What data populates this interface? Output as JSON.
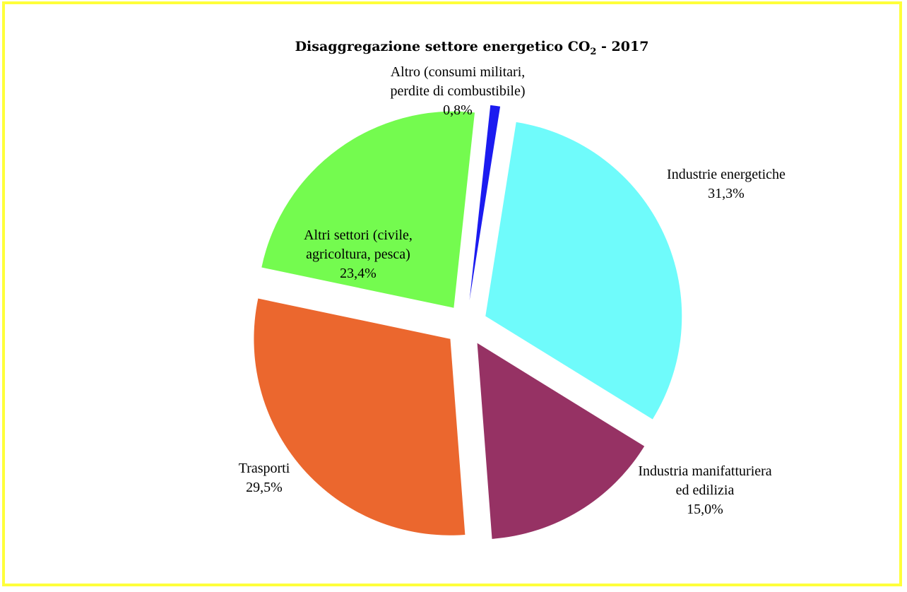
{
  "chart_data": {
    "type": "pie",
    "title_main": "Disaggregazione settore energetico CO",
    "title_sub": "2",
    "title_tail": " - 2017",
    "slices": [
      {
        "key": "industrie-energetiche",
        "lines": [
          "Industrie energetiche"
        ],
        "pct_label": "31,3%",
        "value": 31.3,
        "color": "#6ffbfb"
      },
      {
        "key": "industria-manifatturiera",
        "lines": [
          "Industria manifatturiera",
          "ed edilizia"
        ],
        "pct_label": "15,0%",
        "value": 15.0,
        "color": "#963264"
      },
      {
        "key": "trasporti",
        "lines": [
          "Trasporti"
        ],
        "pct_label": "29,5%",
        "value": 29.5,
        "color": "#eb672e"
      },
      {
        "key": "altri-settori",
        "lines": [
          "Altri settori (civile,",
          "agricoltura, pesca)"
        ],
        "pct_label": "23,4%",
        "value": 23.4,
        "color": "#74fb4f"
      },
      {
        "key": "altro",
        "lines": [
          "Altro (consumi militari,",
          "perdite di combustibile)"
        ],
        "pct_label": "0,8%",
        "value": 0.8,
        "color": "#1b1bf0"
      }
    ]
  }
}
